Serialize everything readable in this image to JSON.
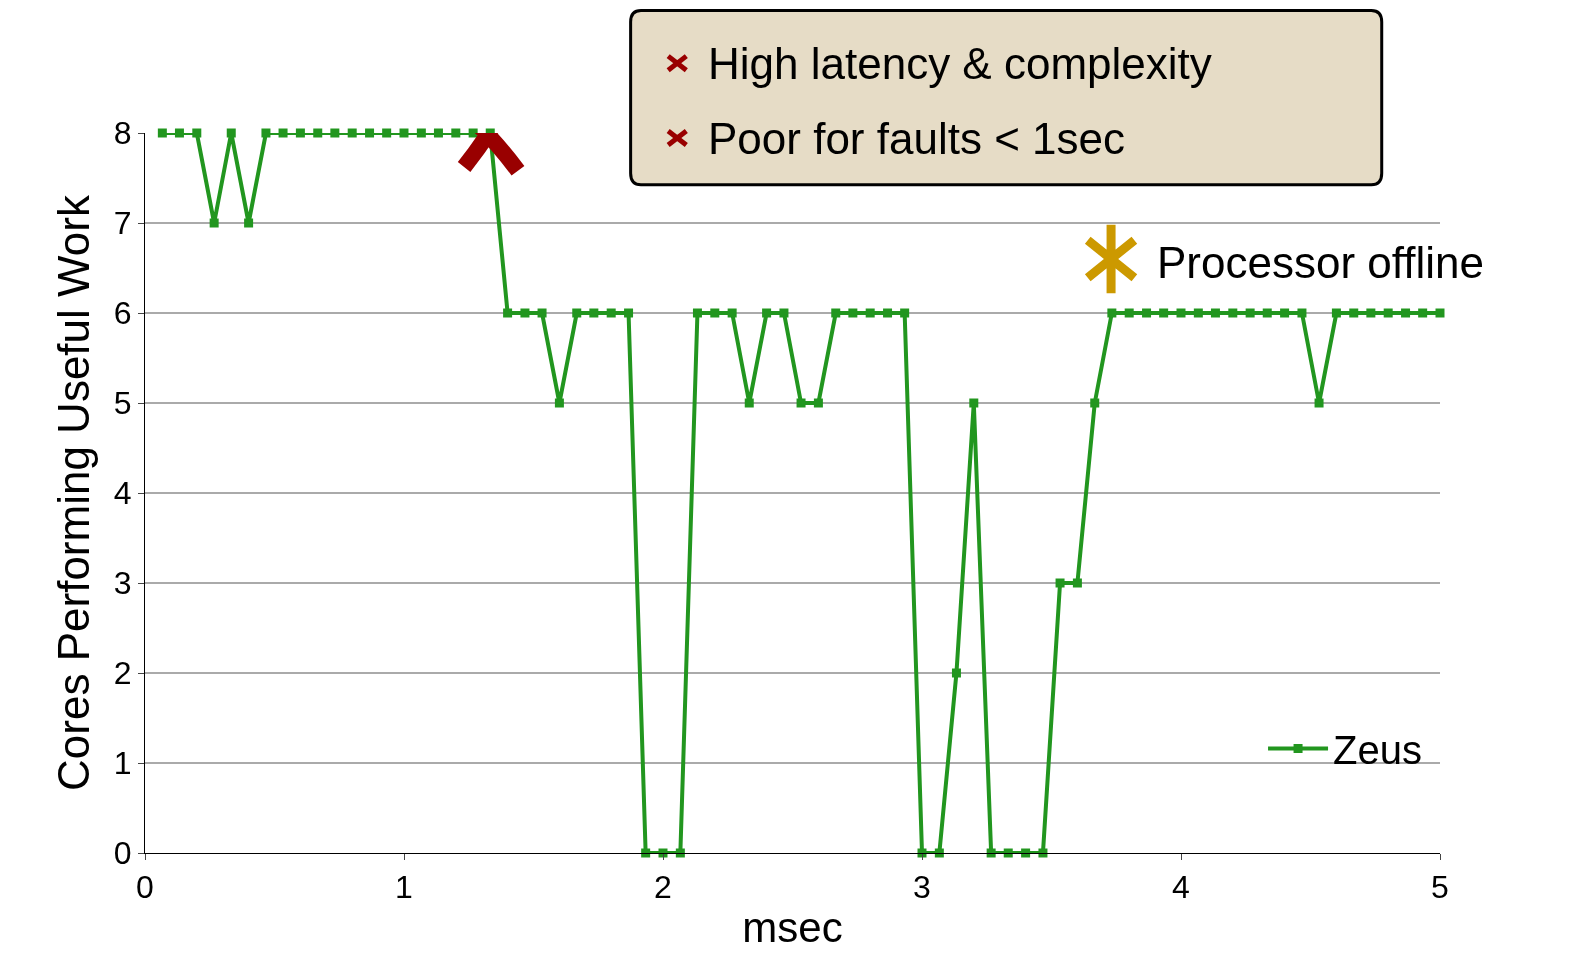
{
  "chart_data": {
    "type": "line",
    "xlabel": "msec",
    "ylabel": "Cores Performing Useful Work",
    "x": [
      0.067,
      0.133,
      0.2,
      0.267,
      0.333,
      0.4,
      0.467,
      0.533,
      0.6,
      0.667,
      0.733,
      0.8,
      0.867,
      0.933,
      1.0,
      1.067,
      1.133,
      1.2,
      1.267,
      1.333,
      1.4,
      1.467,
      1.533,
      1.6,
      1.667,
      1.733,
      1.8,
      1.867,
      1.933,
      2.0,
      2.067,
      2.133,
      2.2,
      2.267,
      2.333,
      2.4,
      2.467,
      2.533,
      2.6,
      2.667,
      2.733,
      2.8,
      2.867,
      2.933,
      3.0,
      3.067,
      3.133,
      3.2,
      3.267,
      3.333,
      3.4,
      3.467,
      3.533,
      3.6,
      3.667,
      3.733,
      3.8,
      3.867,
      3.933,
      4.0,
      4.067,
      4.133,
      4.2,
      4.267,
      4.333,
      4.4,
      4.467,
      4.533,
      4.6,
      4.667,
      4.733,
      4.8,
      4.867,
      4.933,
      5.0
    ],
    "series": [
      {
        "name": "Zeus",
        "color": "#22961f",
        "values": [
          8,
          8,
          8,
          7,
          8,
          7,
          8,
          8,
          8,
          8,
          8,
          8,
          8,
          8,
          8,
          8,
          8,
          8,
          8,
          8,
          6,
          6,
          6,
          5,
          6,
          6,
          6,
          6,
          0,
          0,
          0,
          6,
          6,
          6,
          5,
          6,
          6,
          5,
          5,
          6,
          6,
          6,
          6,
          6,
          0,
          0,
          2,
          5,
          0,
          0,
          0,
          0,
          3,
          3,
          5,
          6,
          6,
          6,
          6,
          6,
          6,
          6,
          6,
          6,
          6,
          6,
          6,
          5,
          6,
          6,
          6,
          6,
          6,
          6,
          6
        ]
      }
    ],
    "xlim": [
      0,
      5
    ],
    "xticks": [
      0,
      1,
      2,
      3,
      4,
      5
    ],
    "ylim": [
      0,
      8
    ],
    "yticks": [
      0,
      1,
      2,
      3,
      4,
      5,
      6,
      7,
      8
    ],
    "grid": "y",
    "legend": "bottom right",
    "marker": "square",
    "line_style": "solid",
    "annotations": [
      "High latency & complexity",
      "Poor for faults < 1sec",
      "Processor offline"
    ]
  }
}
